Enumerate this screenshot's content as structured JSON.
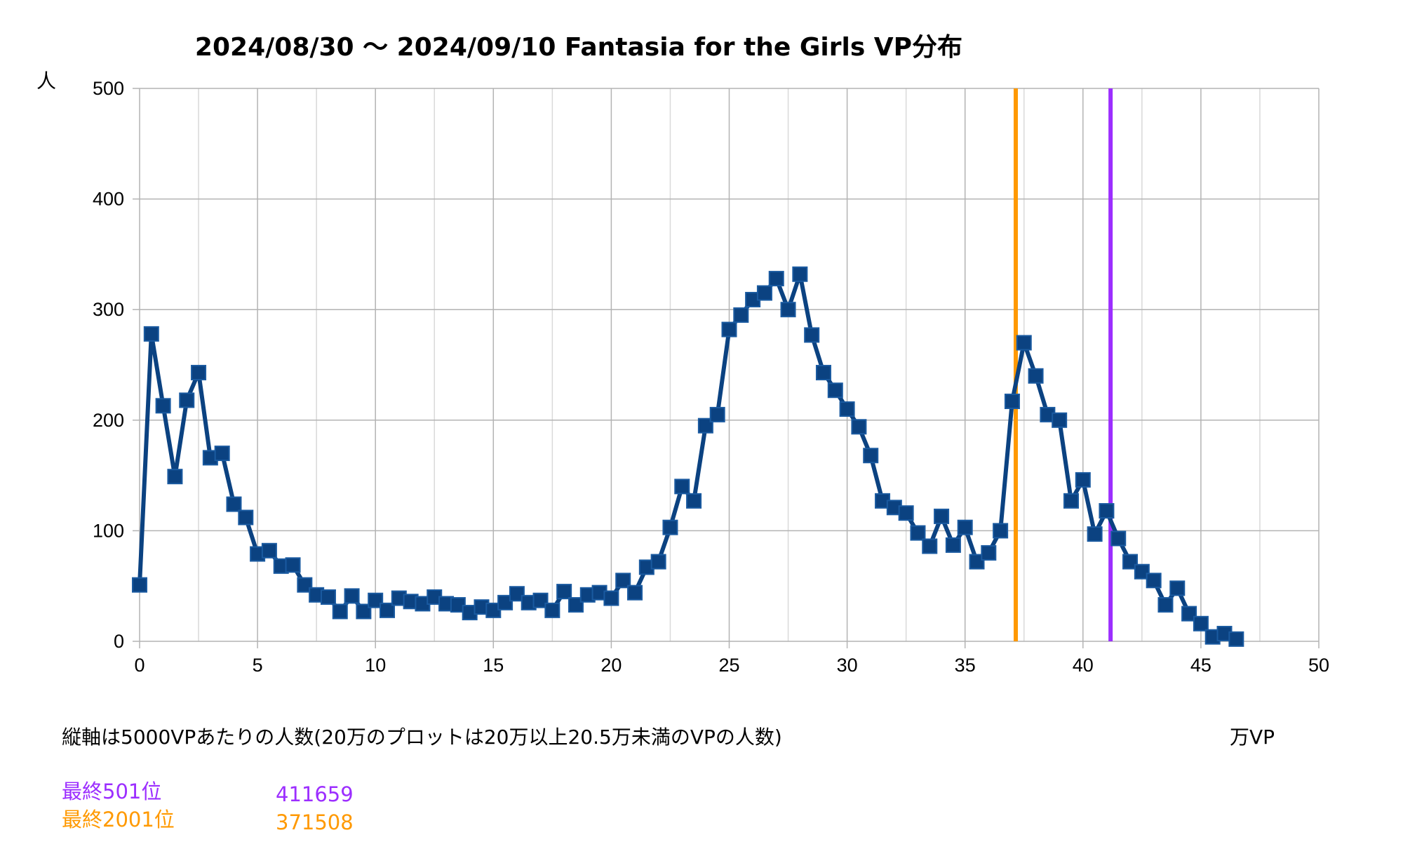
{
  "chart_data": {
    "type": "line",
    "title": "2024/08/30 〜 2024/09/10 Fantasia for the Girls VP分布",
    "ylabel": "人",
    "xlabel": "万VP",
    "note": "縦軸は5000VPあたりの人数(20万のプロットは20万以上20.5万未満のVPの人数)",
    "xlim": [
      0,
      50
    ],
    "ylim": [
      0,
      500
    ],
    "x_ticks": [
      0,
      5,
      10,
      15,
      20,
      25,
      30,
      35,
      40,
      45,
      50
    ],
    "y_ticks": [
      0,
      100,
      200,
      300,
      400,
      500
    ],
    "grid": true,
    "x_minor_step": 2.5,
    "series": [
      {
        "color": "#0b4281",
        "marker": "square",
        "x": [
          0,
          0.5,
          1,
          1.5,
          2,
          2.5,
          3,
          3.5,
          4,
          4.5,
          5,
          5.5,
          6,
          6.5,
          7,
          7.5,
          8,
          8.5,
          9,
          9.5,
          10,
          10.5,
          11,
          11.5,
          12,
          12.5,
          13,
          13.5,
          14,
          14.5,
          15,
          15.5,
          16,
          16.5,
          17,
          17.5,
          18,
          18.5,
          19,
          19.5,
          20,
          20.5,
          21,
          21.5,
          22,
          22.5,
          23,
          23.5,
          24,
          24.5,
          25,
          25.5,
          26,
          26.5,
          27,
          27.5,
          28,
          28.5,
          29,
          29.5,
          30,
          30.5,
          31,
          31.5,
          32,
          32.5,
          33,
          33.5,
          34,
          34.5,
          35,
          35.5,
          36,
          36.5,
          37,
          37.5,
          38,
          38.5,
          39,
          39.5,
          40,
          40.5,
          41,
          41.5,
          42,
          42.5,
          43,
          43.5,
          44,
          44.5,
          45,
          45.5,
          46,
          46.5
        ],
        "values": [
          51,
          278,
          213,
          149,
          218,
          243,
          166,
          170,
          124,
          112,
          79,
          82,
          68,
          69,
          51,
          42,
          40,
          27,
          41,
          27,
          37,
          28,
          39,
          36,
          34,
          40,
          34,
          33,
          26,
          31,
          28,
          35,
          43,
          35,
          37,
          28,
          45,
          33,
          42,
          44,
          39,
          55,
          44,
          67,
          72,
          103,
          140,
          127,
          195,
          205,
          282,
          295,
          309,
          315,
          328,
          300,
          332,
          277,
          243,
          227,
          210,
          194,
          168,
          127,
          121,
          116,
          98,
          86,
          113,
          87,
          103,
          72,
          80,
          100,
          217,
          270,
          240,
          205,
          200,
          127,
          146,
          97,
          118,
          93,
          72,
          63,
          55,
          33,
          48,
          25,
          16,
          4,
          7,
          2
        ]
      }
    ],
    "vertical_lines": [
      {
        "x": 37.15,
        "color": "#ff9900"
      },
      {
        "x": 41.17,
        "color": "#9c2eff"
      }
    ]
  },
  "legend": [
    {
      "label": "最終501位",
      "value": "411659",
      "color": "#9c2eff"
    },
    {
      "label": "最終2001位",
      "value": "371508",
      "color": "#ff9900"
    }
  ]
}
